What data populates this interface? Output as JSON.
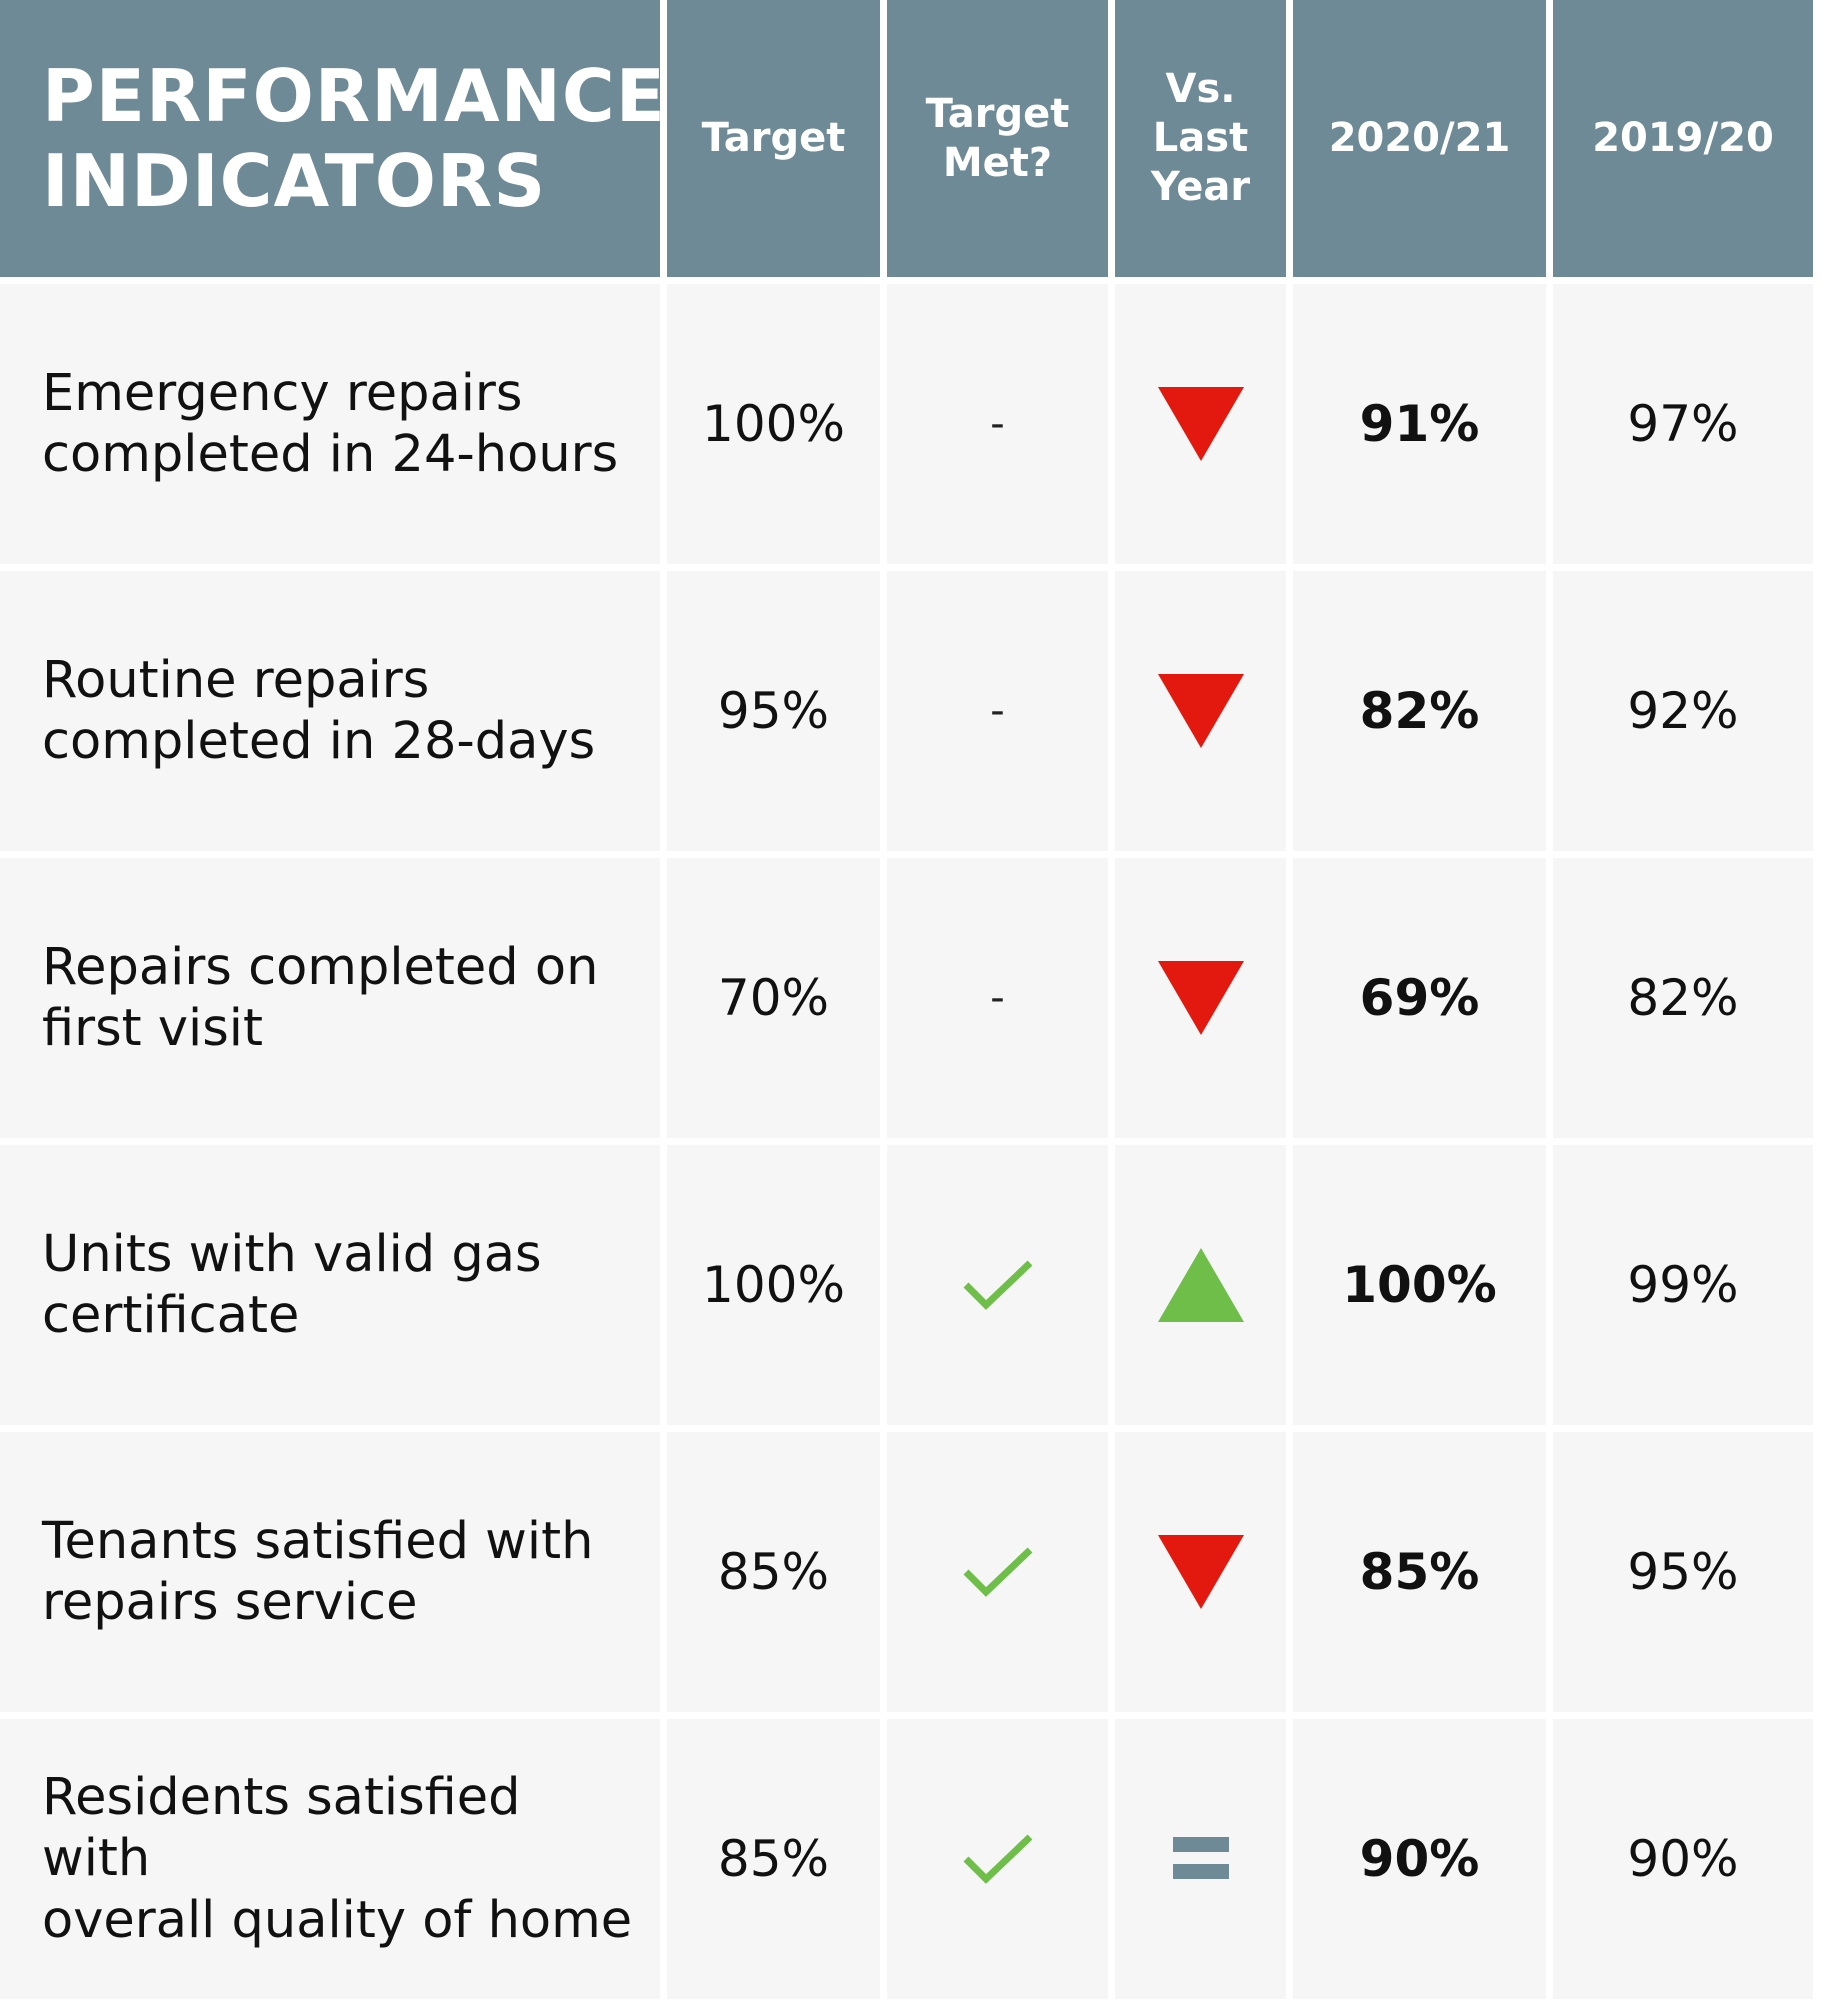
{
  "header": {
    "title": "PERFORMANCE\nINDICATORS",
    "target": "Target",
    "target_met": "Target\nMet?",
    "vs_last_year": "Vs.\nLast\nYear",
    "year_current": "2020/21",
    "year_previous": "2019/20"
  },
  "colors": {
    "header_bg": "#6d8a96",
    "down": "#e3190f",
    "up": "#6fbe4a",
    "equal": "#6d8a96",
    "check": "#6fbe4a"
  },
  "rows": [
    {
      "indicator": "Emergency repairs\ncompleted in 24-hours",
      "target": "100%",
      "target_met": "-",
      "vs_last_year": "down-triangle-icon",
      "current": "91%",
      "previous": "97%"
    },
    {
      "indicator": "Routine repairs\ncompleted in 28-days",
      "target": "95%",
      "target_met": "-",
      "vs_last_year": "down-triangle-icon",
      "current": "82%",
      "previous": "92%"
    },
    {
      "indicator": "Repairs completed on\nfirst visit",
      "target": "70%",
      "target_met": "-",
      "vs_last_year": "down-triangle-icon",
      "current": "69%",
      "previous": "82%"
    },
    {
      "indicator": "Units with valid gas\ncertificate",
      "target": "100%",
      "target_met": "check-icon",
      "vs_last_year": "up-triangle-icon",
      "current": "100%",
      "previous": "99%"
    },
    {
      "indicator": "Tenants satisfied with\nrepairs service",
      "target": "85%",
      "target_met": "check-icon",
      "vs_last_year": "down-triangle-icon",
      "current": "85%",
      "previous": "95%"
    },
    {
      "indicator": "Residents satisfied with\noverall quality of home",
      "target": "85%",
      "target_met": "check-icon",
      "vs_last_year": "equal-icon",
      "current": "90%",
      "previous": "90%"
    }
  ]
}
